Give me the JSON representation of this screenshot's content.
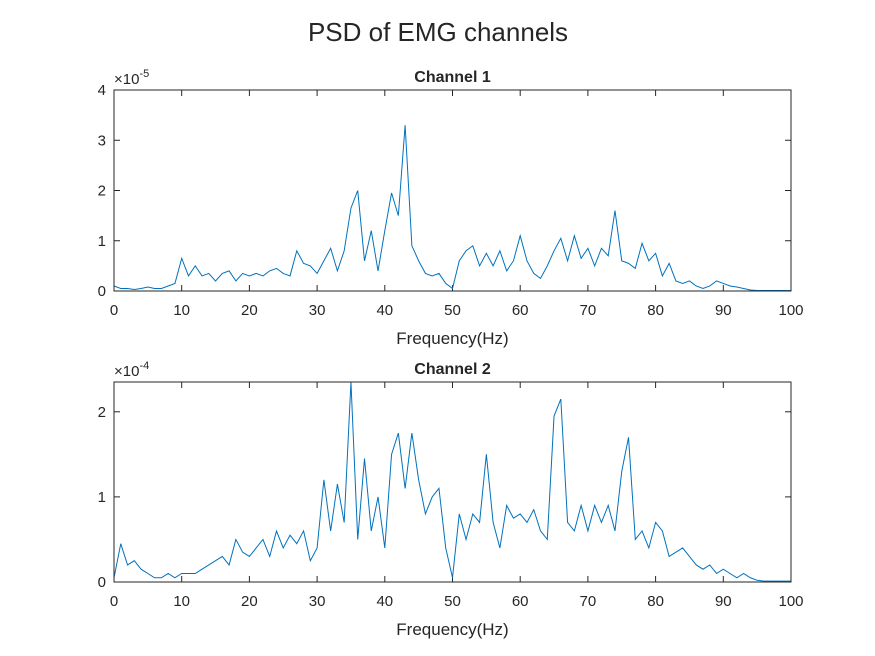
{
  "title": "PSD of EMG channels",
  "chart_data": [
    {
      "type": "line",
      "title": "Channel 1",
      "x_label": "Frequency(Hz)",
      "y_multiplier": {
        "base": "×10",
        "exponent": "-5"
      },
      "xlim": [
        0,
        100
      ],
      "xticks": [
        0,
        10,
        20,
        30,
        40,
        50,
        60,
        70,
        80,
        90,
        100
      ],
      "ylim": [
        0,
        4
      ],
      "yticks": [
        0,
        1,
        2,
        3,
        4
      ],
      "x": [
        0,
        1,
        2,
        3,
        4,
        5,
        6,
        7,
        8,
        9,
        10,
        11,
        12,
        13,
        14,
        15,
        16,
        17,
        18,
        19,
        20,
        21,
        22,
        23,
        24,
        25,
        26,
        27,
        28,
        29,
        30,
        31,
        32,
        33,
        34,
        35,
        36,
        37,
        38,
        39,
        40,
        41,
        42,
        43,
        44,
        45,
        46,
        47,
        48,
        49,
        50,
        51,
        52,
        53,
        54,
        55,
        56,
        57,
        58,
        59,
        60,
        61,
        62,
        63,
        64,
        65,
        66,
        67,
        68,
        69,
        70,
        71,
        72,
        73,
        74,
        75,
        76,
        77,
        78,
        79,
        80,
        81,
        82,
        83,
        84,
        85,
        86,
        87,
        88,
        89,
        90,
        91,
        92,
        93,
        94,
        95,
        96,
        97,
        98,
        99,
        100
      ],
      "color": "#0072bd",
      "values": [
        0.1,
        0.05,
        0.05,
        0.03,
        0.05,
        0.08,
        0.05,
        0.05,
        0.1,
        0.15,
        0.65,
        0.3,
        0.5,
        0.3,
        0.35,
        0.2,
        0.35,
        0.4,
        0.2,
        0.35,
        0.3,
        0.35,
        0.3,
        0.4,
        0.45,
        0.35,
        0.3,
        0.8,
        0.55,
        0.5,
        0.35,
        0.6,
        0.85,
        0.4,
        0.8,
        1.65,
        2.0,
        0.6,
        1.2,
        0.4,
        1.2,
        1.95,
        1.5,
        3.3,
        0.9,
        0.6,
        0.35,
        0.3,
        0.35,
        0.15,
        0.05,
        0.6,
        0.8,
        0.9,
        0.5,
        0.75,
        0.5,
        0.8,
        0.4,
        0.6,
        1.1,
        0.6,
        0.35,
        0.25,
        0.5,
        0.8,
        1.05,
        0.6,
        1.1,
        0.65,
        0.85,
        0.5,
        0.85,
        0.7,
        1.6,
        0.6,
        0.55,
        0.45,
        0.95,
        0.6,
        0.75,
        0.3,
        0.55,
        0.2,
        0.15,
        0.2,
        0.1,
        0.05,
        0.1,
        0.2,
        0.15,
        0.1,
        0.08,
        0.05,
        0.02,
        0.01,
        0.01,
        0.01,
        0.01,
        0.01,
        0.01
      ]
    },
    {
      "type": "line",
      "title": "Channel 2",
      "x_label": "Frequency(Hz)",
      "y_multiplier": {
        "base": "×10",
        "exponent": "-4"
      },
      "xlim": [
        0,
        100
      ],
      "xticks": [
        0,
        10,
        20,
        30,
        40,
        50,
        60,
        70,
        80,
        90,
        100
      ],
      "ylim": [
        0,
        2.35
      ],
      "yticks": [
        0,
        1,
        2
      ],
      "x": [
        0,
        1,
        2,
        3,
        4,
        5,
        6,
        7,
        8,
        9,
        10,
        11,
        12,
        13,
        14,
        15,
        16,
        17,
        18,
        19,
        20,
        21,
        22,
        23,
        24,
        25,
        26,
        27,
        28,
        29,
        30,
        31,
        32,
        33,
        34,
        35,
        36,
        37,
        38,
        39,
        40,
        41,
        42,
        43,
        44,
        45,
        46,
        47,
        48,
        49,
        50,
        51,
        52,
        53,
        54,
        55,
        56,
        57,
        58,
        59,
        60,
        61,
        62,
        63,
        64,
        65,
        66,
        67,
        68,
        69,
        70,
        71,
        72,
        73,
        74,
        75,
        76,
        77,
        78,
        79,
        80,
        81,
        82,
        83,
        84,
        85,
        86,
        87,
        88,
        89,
        90,
        91,
        92,
        93,
        94,
        95,
        96,
        97,
        98,
        99,
        100
      ],
      "color": "#0072bd",
      "values": [
        0.05,
        0.45,
        0.2,
        0.25,
        0.15,
        0.1,
        0.05,
        0.05,
        0.1,
        0.05,
        0.1,
        0.1,
        0.1,
        0.15,
        0.2,
        0.25,
        0.3,
        0.2,
        0.5,
        0.35,
        0.3,
        0.4,
        0.5,
        0.3,
        0.6,
        0.4,
        0.55,
        0.45,
        0.6,
        0.25,
        0.4,
        1.2,
        0.6,
        1.15,
        0.7,
        2.35,
        0.5,
        1.45,
        0.6,
        1.0,
        0.4,
        1.5,
        1.75,
        1.1,
        1.75,
        1.2,
        0.8,
        1.0,
        1.1,
        0.4,
        0.05,
        0.8,
        0.5,
        0.8,
        0.7,
        1.5,
        0.7,
        0.4,
        0.9,
        0.75,
        0.8,
        0.7,
        0.85,
        0.6,
        0.5,
        1.95,
        2.15,
        0.7,
        0.6,
        0.9,
        0.6,
        0.9,
        0.7,
        0.9,
        0.6,
        1.3,
        1.7,
        0.5,
        0.6,
        0.4,
        0.7,
        0.6,
        0.3,
        0.35,
        0.4,
        0.3,
        0.2,
        0.15,
        0.2,
        0.1,
        0.15,
        0.1,
        0.05,
        0.1,
        0.05,
        0.02,
        0.01,
        0.01,
        0.01,
        0.01,
        0.01
      ]
    }
  ]
}
